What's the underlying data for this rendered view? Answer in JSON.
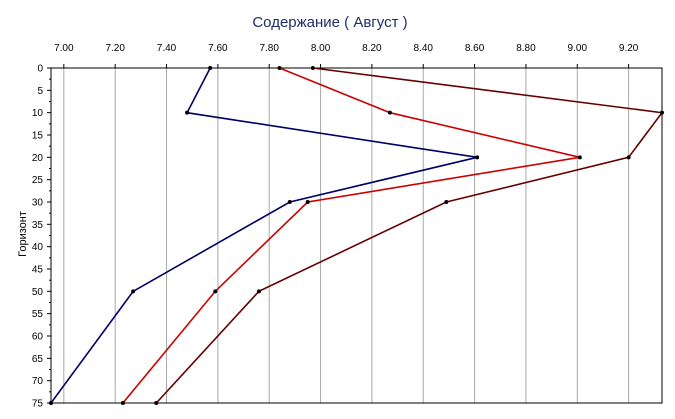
{
  "chart_data": {
    "type": "line",
    "title": "Содержание    ( Август )",
    "xlabel": "",
    "ylabel": "Горизонт",
    "x_axis_position": "top",
    "y_inverted": true,
    "xlim": [
      6.95,
      9.33
    ],
    "ylim": [
      0,
      75
    ],
    "x_ticks": [
      "7.00",
      "7.20",
      "7.40",
      "7.60",
      "7.80",
      "8.00",
      "8.20",
      "8.40",
      "8.60",
      "8.80",
      "9.00",
      "9.20"
    ],
    "y_ticks": [
      "0",
      "5",
      "10",
      "15",
      "20",
      "25",
      "30",
      "35",
      "40",
      "45",
      "50",
      "55",
      "60",
      "65",
      "70",
      "75"
    ],
    "grid": "vertical",
    "legend": "none",
    "series": [
      {
        "color": "#000066",
        "points": [
          {
            "x": 7.57,
            "y": 0
          },
          {
            "x": 7.48,
            "y": 10
          },
          {
            "x": 8.61,
            "y": 20
          },
          {
            "x": 7.88,
            "y": 30
          },
          {
            "x": 7.27,
            "y": 50
          },
          {
            "x": 6.95,
            "y": 75
          }
        ]
      },
      {
        "color": "#cc0000",
        "points": [
          {
            "x": 7.84,
            "y": 0
          },
          {
            "x": 8.27,
            "y": 10
          },
          {
            "x": 9.01,
            "y": 20
          },
          {
            "x": 7.95,
            "y": 30
          },
          {
            "x": 7.59,
            "y": 50
          },
          {
            "x": 7.23,
            "y": 75
          }
        ]
      },
      {
        "color": "#660000",
        "points": [
          {
            "x": 7.97,
            "y": 0
          },
          {
            "x": 9.33,
            "y": 10
          },
          {
            "x": 9.2,
            "y": 20
          },
          {
            "x": 8.49,
            "y": 30
          },
          {
            "x": 7.76,
            "y": 50
          },
          {
            "x": 7.36,
            "y": 75
          }
        ]
      }
    ]
  }
}
